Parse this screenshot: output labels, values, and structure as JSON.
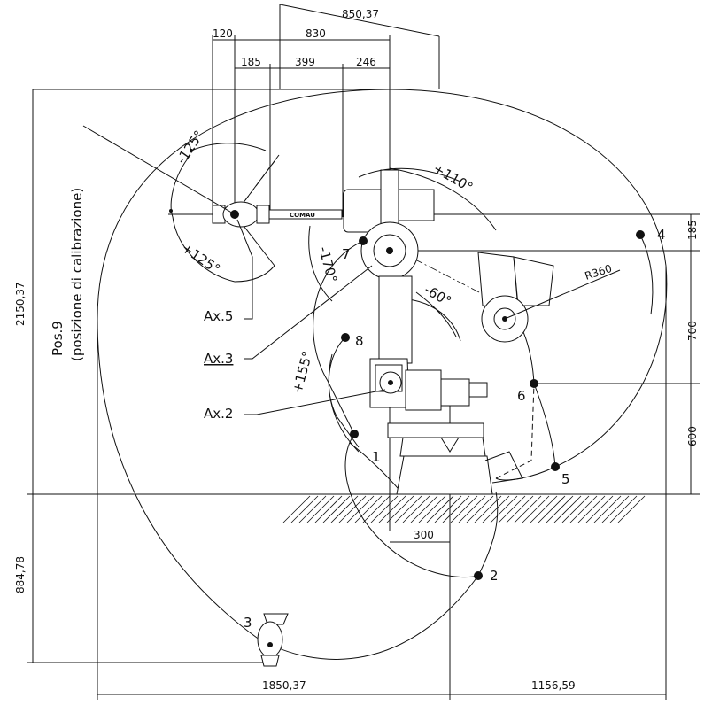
{
  "dimensions": {
    "top_850": "850,37",
    "top_120": "120",
    "top_830": "830",
    "top_185": "185",
    "top_399": "399",
    "top_246": "246",
    "left_2150": "2150,37",
    "left_884": "884,78",
    "right_185": "185",
    "right_700": "700",
    "right_600": "600",
    "bottom_300": "300",
    "bottom_1850": "1850,37",
    "bottom_1156": "1156,59",
    "radius": "R360"
  },
  "angles": {
    "a_minus125": "-125°",
    "a_plus125": "+125°",
    "a_plus110": "+110°",
    "a_minus170": "-170°",
    "a_minus60": "-60°",
    "a_plus155": "+155°"
  },
  "axes": {
    "ax5": "Ax.5",
    "ax3": "Ax.3",
    "ax2": "Ax.2"
  },
  "position_label": {
    "line1": "Pos.9",
    "line2": "(posizione  di calibrazione)"
  },
  "points": [
    "1",
    "2",
    "3",
    "4",
    "5",
    "6",
    "7",
    "8"
  ],
  "brand": "COMAU"
}
